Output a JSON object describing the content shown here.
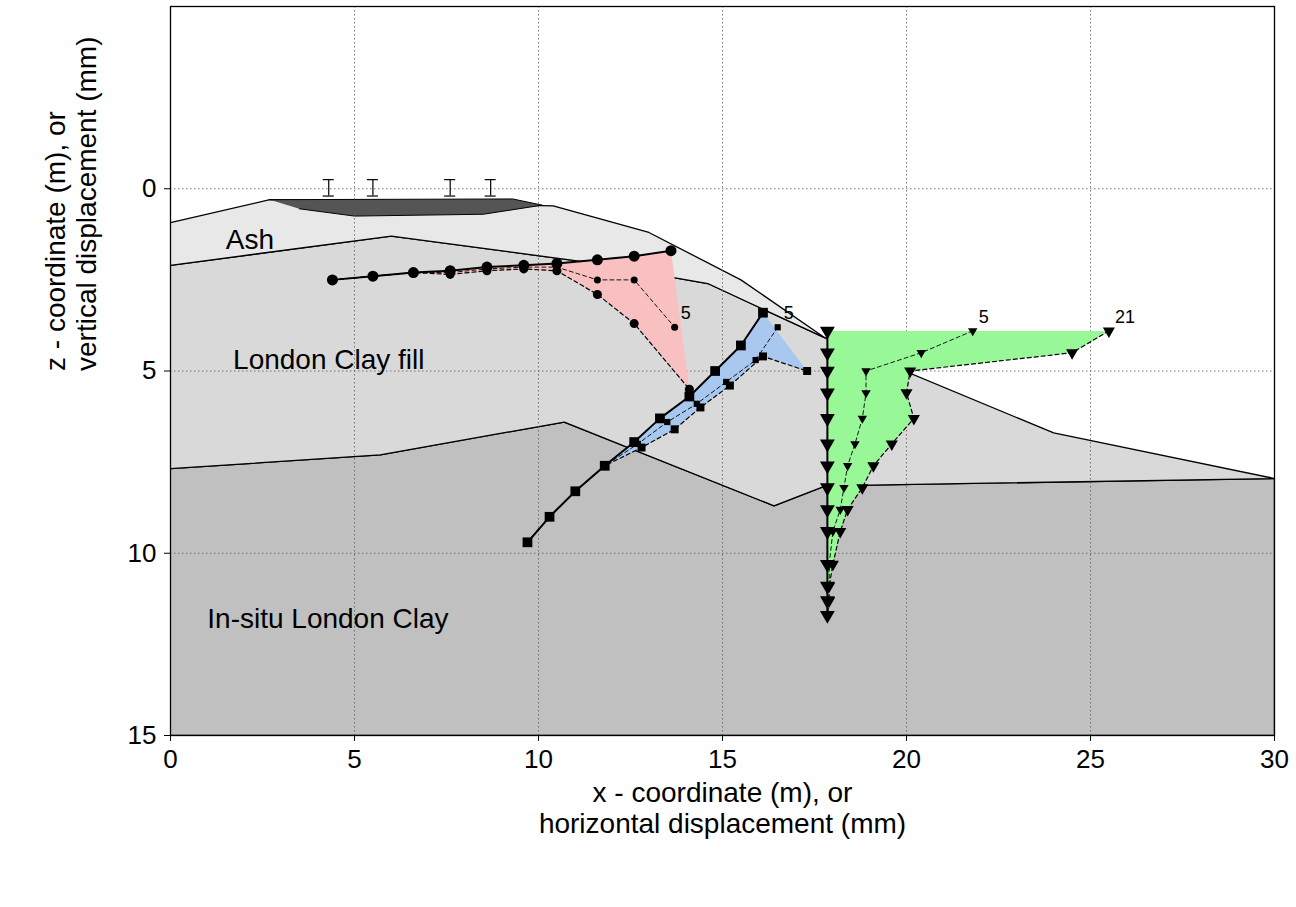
{
  "chart_data": {
    "type": "cross-section",
    "x_label": [
      "x - coordinate (m), or",
      "horizontal displacement (mm)"
    ],
    "y_label": [
      "z - coordinate (m), or",
      "vertical displacement (mm)"
    ],
    "xlim": [
      0,
      30
    ],
    "xticks": [
      0,
      5,
      10,
      15,
      20,
      25,
      30
    ],
    "ylim": [
      15,
      -5
    ],
    "yticks": [
      0,
      5,
      10,
      15
    ],
    "grid": true,
    "regions": [
      {
        "name": "In-situ London Clay",
        "color": "#c0c0c0",
        "label_x": 1.0,
        "label_z": 11.8,
        "polygon": [
          [
            0,
            7.68
          ],
          [
            5.7,
            7.3
          ],
          [
            10.7,
            6.4
          ],
          [
            16.4,
            8.7
          ],
          [
            17.8,
            8.15
          ],
          [
            30,
            7.95
          ],
          [
            30,
            15
          ],
          [
            0,
            15
          ]
        ]
      },
      {
        "name": "London Clay fill",
        "color": "#d9d9d9",
        "label_x": 1.7,
        "label_z": 4.7,
        "polygon": [
          [
            0,
            2.1
          ],
          [
            6,
            1.3
          ],
          [
            11.2,
            2.0
          ],
          [
            14.6,
            2.6
          ],
          [
            17.8,
            4.1
          ],
          [
            24,
            6.7
          ],
          [
            30,
            7.95
          ],
          [
            17.8,
            8.15
          ],
          [
            16.4,
            8.7
          ],
          [
            10.7,
            6.4
          ],
          [
            5.7,
            7.3
          ],
          [
            0,
            7.68
          ]
        ]
      },
      {
        "name": "Ash",
        "color": "#e8e8e8",
        "label_x": 1.5,
        "label_z": 1.4,
        "polygon": [
          [
            0,
            0.93
          ],
          [
            2.7,
            0.3
          ],
          [
            10.4,
            0.47
          ],
          [
            13,
            1.2
          ],
          [
            15.5,
            2.5
          ],
          [
            17.8,
            4.1
          ],
          [
            14.6,
            2.6
          ],
          [
            11.2,
            2.0
          ],
          [
            6,
            1.3
          ],
          [
            0,
            2.1
          ]
        ]
      }
    ],
    "surface_layer": {
      "color": "#555555",
      "polygon": [
        [
          2.7,
          0.3
        ],
        [
          9.3,
          0.28
        ],
        [
          10.1,
          0.45
        ],
        [
          8.5,
          0.7
        ],
        [
          5,
          0.75
        ],
        [
          3.5,
          0.55
        ]
      ]
    },
    "settlement_markers": {
      "x": [
        4.3,
        5.5,
        7.6,
        8.7
      ],
      "z_top": -0.25,
      "z_bottom": 0.2
    },
    "inclinometers": [
      {
        "color": "#f8c0c0",
        "marker": "circle",
        "baseline": [
          [
            4.4,
            2.5
          ],
          [
            5.5,
            2.4
          ],
          [
            6.6,
            2.3
          ],
          [
            7.6,
            2.25
          ],
          [
            8.6,
            2.15
          ],
          [
            9.6,
            2.1
          ],
          [
            10.5,
            2.05
          ],
          [
            11.6,
            1.95
          ],
          [
            12.6,
            1.85
          ],
          [
            13.6,
            1.7
          ]
        ],
        "profiles": [
          {
            "label": "5",
            "points": [
              [
                4.4,
                2.5
              ],
              [
                5.5,
                2.4
              ],
              [
                6.6,
                2.3
              ],
              [
                7.6,
                2.3
              ],
              [
                8.6,
                2.2
              ],
              [
                9.6,
                2.15
              ],
              [
                10.5,
                2.15
              ],
              [
                11.6,
                2.5
              ],
              [
                12.6,
                2.5
              ],
              [
                13.7,
                3.8
              ]
            ]
          },
          {
            "label": null,
            "points": [
              [
                4.4,
                2.5
              ],
              [
                5.5,
                2.4
              ],
              [
                6.6,
                2.3
              ],
              [
                7.6,
                2.35
              ],
              [
                8.6,
                2.25
              ],
              [
                9.6,
                2.2
              ],
              [
                10.5,
                2.25
              ],
              [
                11.6,
                2.9
              ],
              [
                12.6,
                3.7
              ],
              [
                14.1,
                5.5
              ]
            ]
          }
        ]
      },
      {
        "color": "#a8c8f0",
        "marker": "square",
        "baseline": [
          [
            9.7,
            9.7
          ],
          [
            10.3,
            9.0
          ],
          [
            11.0,
            8.3
          ],
          [
            11.8,
            7.6
          ],
          [
            12.6,
            6.95
          ],
          [
            13.3,
            6.3
          ],
          [
            14.1,
            5.7
          ],
          [
            14.8,
            5.0
          ],
          [
            15.5,
            4.3
          ],
          [
            16.1,
            3.4
          ]
        ],
        "profiles": [
          {
            "label": "5",
            "points": [
              [
                9.7,
                9.7
              ],
              [
                10.3,
                9.0
              ],
              [
                11.0,
                8.3
              ],
              [
                11.8,
                7.6
              ],
              [
                12.7,
                7.0
              ],
              [
                13.5,
                6.4
              ],
              [
                14.3,
                5.9
              ],
              [
                15.1,
                5.3
              ],
              [
                15.9,
                4.7
              ],
              [
                16.5,
                3.8
              ]
            ]
          },
          {
            "label": null,
            "points": [
              [
                9.7,
                9.7
              ],
              [
                10.3,
                9.0
              ],
              [
                11.0,
                8.3
              ],
              [
                11.8,
                7.6
              ],
              [
                12.8,
                7.1
              ],
              [
                13.7,
                6.6
              ],
              [
                14.4,
                6.0
              ],
              [
                15.2,
                5.4
              ],
              [
                16.1,
                4.6
              ],
              [
                17.3,
                5.0
              ]
            ]
          }
        ]
      },
      {
        "color": "#98f898",
        "marker": "triangle-down",
        "baseline": [
          [
            17.85,
            3.9
          ],
          [
            17.85,
            4.5
          ],
          [
            17.85,
            5.0
          ],
          [
            17.85,
            5.6
          ],
          [
            17.85,
            6.3
          ],
          [
            17.85,
            7.0
          ],
          [
            17.85,
            7.6
          ],
          [
            17.85,
            8.2
          ],
          [
            17.85,
            8.8
          ],
          [
            17.85,
            9.4
          ],
          [
            17.85,
            10.3
          ],
          [
            17.85,
            10.9
          ],
          [
            17.85,
            11.3
          ],
          [
            17.85,
            11.7
          ]
        ],
        "profiles": [
          {
            "label": "5",
            "points": [
              [
                21.8,
                3.9
              ],
              [
                20.4,
                4.5
              ],
              [
                18.9,
                5.0
              ],
              [
                18.9,
                5.6
              ],
              [
                18.8,
                6.3
              ],
              [
                18.6,
                7.0
              ],
              [
                18.4,
                7.6
              ],
              [
                18.3,
                8.2
              ],
              [
                18.2,
                8.8
              ],
              [
                18.0,
                9.4
              ],
              [
                17.9,
                10.3
              ],
              [
                17.9,
                10.9
              ],
              [
                17.85,
                11.3
              ],
              [
                17.85,
                11.7
              ]
            ]
          },
          {
            "label": "21",
            "points": [
              [
                25.5,
                3.9
              ],
              [
                24.5,
                4.5
              ],
              [
                20.1,
                5.0
              ],
              [
                20.0,
                5.6
              ],
              [
                20.2,
                6.3
              ],
              [
                19.6,
                7.0
              ],
              [
                19.1,
                7.6
              ],
              [
                18.8,
                8.2
              ],
              [
                18.4,
                8.8
              ],
              [
                18.2,
                9.4
              ],
              [
                18.0,
                10.3
              ],
              [
                17.9,
                10.9
              ],
              [
                17.9,
                11.3
              ],
              [
                17.85,
                11.7
              ]
            ]
          }
        ]
      }
    ]
  }
}
